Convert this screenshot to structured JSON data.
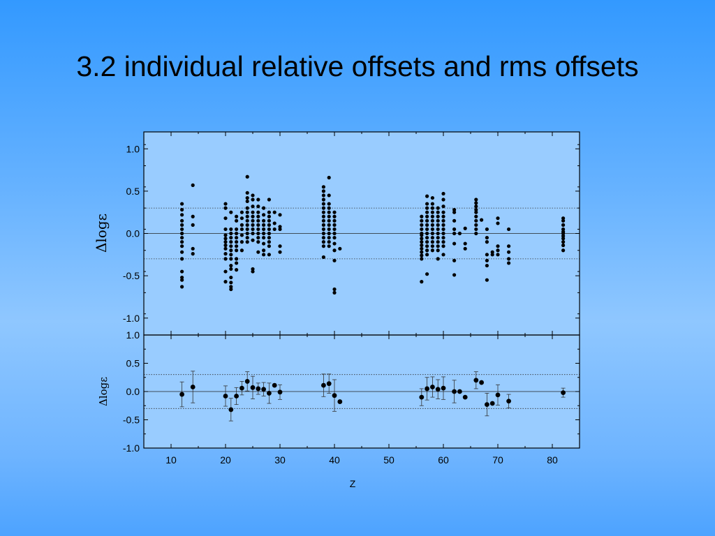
{
  "slide": {
    "title": "3.2 individual relative offsets and rms offsets"
  },
  "chart_data": [
    {
      "type": "scatter",
      "panel": "top",
      "title": "",
      "xlabel": "",
      "ylabel": "Δlogε",
      "xlim": [
        5,
        85
      ],
      "ylim": [
        -1.2,
        1.2
      ],
      "yticks": [
        1.0,
        0.5,
        0.0,
        -0.5,
        -1.0
      ],
      "ytick_labels": [
        "1.0",
        "0.5",
        "0.0",
        "-0.5",
        "-1.0"
      ],
      "reference_lines": {
        "solid": [
          0.0
        ],
        "dotted": [
          0.3,
          -0.3
        ]
      },
      "points": [
        [
          12,
          0.35
        ],
        [
          12,
          0.28
        ],
        [
          12,
          0.22
        ],
        [
          12,
          0.15
        ],
        [
          12,
          0.1
        ],
        [
          12,
          0.05
        ],
        [
          12,
          0.0
        ],
        [
          12,
          -0.05
        ],
        [
          12,
          -0.1
        ],
        [
          12,
          -0.15
        ],
        [
          12,
          -0.22
        ],
        [
          12,
          -0.3
        ],
        [
          12,
          -0.45
        ],
        [
          12,
          -0.52
        ],
        [
          12,
          -0.55
        ],
        [
          12,
          -0.63
        ],
        [
          14,
          0.57
        ],
        [
          14,
          0.2
        ],
        [
          14,
          0.1
        ],
        [
          14,
          -0.18
        ],
        [
          14,
          -0.24
        ],
        [
          20,
          0.35
        ],
        [
          20,
          0.3
        ],
        [
          20,
          0.18
        ],
        [
          20,
          0.05
        ],
        [
          20,
          -0.02
        ],
        [
          20,
          -0.06
        ],
        [
          20,
          -0.1
        ],
        [
          20,
          -0.14
        ],
        [
          20,
          -0.18
        ],
        [
          20,
          -0.24
        ],
        [
          20,
          -0.3
        ],
        [
          20,
          -0.45
        ],
        [
          20,
          -0.57
        ],
        [
          21,
          0.25
        ],
        [
          21,
          0.05
        ],
        [
          21,
          0.0
        ],
        [
          21,
          -0.05
        ],
        [
          21,
          -0.1
        ],
        [
          21,
          -0.15
        ],
        [
          21,
          -0.2
        ],
        [
          21,
          -0.25
        ],
        [
          21,
          -0.3
        ],
        [
          21,
          -0.38
        ],
        [
          21,
          -0.42
        ],
        [
          21,
          -0.52
        ],
        [
          21,
          -0.58
        ],
        [
          21,
          -0.63
        ],
        [
          21,
          -0.66
        ],
        [
          22,
          0.2
        ],
        [
          22,
          0.15
        ],
        [
          22,
          0.05
        ],
        [
          22,
          0.0
        ],
        [
          22,
          -0.05
        ],
        [
          22,
          -0.1
        ],
        [
          22,
          -0.15
        ],
        [
          22,
          -0.2
        ],
        [
          22,
          -0.3
        ],
        [
          22,
          -0.35
        ],
        [
          22,
          -0.43
        ],
        [
          23,
          0.25
        ],
        [
          23,
          0.18
        ],
        [
          23,
          0.1
        ],
        [
          23,
          0.05
        ],
        [
          23,
          -0.02
        ],
        [
          23,
          -0.1
        ],
        [
          23,
          -0.2
        ],
        [
          24,
          0.67
        ],
        [
          24,
          0.48
        ],
        [
          24,
          0.42
        ],
        [
          24,
          0.38
        ],
        [
          24,
          0.3
        ],
        [
          24,
          0.25
        ],
        [
          24,
          0.2
        ],
        [
          24,
          0.15
        ],
        [
          24,
          0.1
        ],
        [
          24,
          0.05
        ],
        [
          24,
          0.0
        ],
        [
          24,
          -0.05
        ],
        [
          24,
          -0.1
        ],
        [
          25,
          0.45
        ],
        [
          25,
          0.4
        ],
        [
          25,
          0.32
        ],
        [
          25,
          0.25
        ],
        [
          25,
          0.2
        ],
        [
          25,
          0.15
        ],
        [
          25,
          0.1
        ],
        [
          25,
          0.05
        ],
        [
          25,
          0.0
        ],
        [
          25,
          -0.08
        ],
        [
          25,
          -0.42
        ],
        [
          25,
          -0.45
        ],
        [
          26,
          0.4
        ],
        [
          26,
          0.32
        ],
        [
          26,
          0.25
        ],
        [
          26,
          0.2
        ],
        [
          26,
          0.15
        ],
        [
          26,
          0.1
        ],
        [
          26,
          0.05
        ],
        [
          26,
          0.0
        ],
        [
          26,
          -0.05
        ],
        [
          26,
          -0.1
        ],
        [
          26,
          -0.22
        ],
        [
          27,
          0.3
        ],
        [
          27,
          0.22
        ],
        [
          27,
          0.15
        ],
        [
          27,
          0.1
        ],
        [
          27,
          0.05
        ],
        [
          27,
          0.0
        ],
        [
          27,
          -0.05
        ],
        [
          27,
          -0.12
        ],
        [
          27,
          -0.2
        ],
        [
          27,
          -0.25
        ],
        [
          28,
          0.4
        ],
        [
          28,
          0.25
        ],
        [
          28,
          0.2
        ],
        [
          28,
          0.15
        ],
        [
          28,
          0.1
        ],
        [
          28,
          0.05
        ],
        [
          28,
          0.0
        ],
        [
          28,
          -0.05
        ],
        [
          28,
          -0.1
        ],
        [
          28,
          -0.15
        ],
        [
          28,
          -0.25
        ],
        [
          29,
          0.25
        ],
        [
          29,
          0.12
        ],
        [
          29,
          0.05
        ],
        [
          30,
          0.22
        ],
        [
          30,
          0.08
        ],
        [
          30,
          0.05
        ],
        [
          30,
          -0.15
        ],
        [
          30,
          -0.22
        ],
        [
          38,
          0.55
        ],
        [
          38,
          0.5
        ],
        [
          38,
          0.45
        ],
        [
          38,
          0.4
        ],
        [
          38,
          0.35
        ],
        [
          38,
          0.3
        ],
        [
          38,
          0.25
        ],
        [
          38,
          0.2
        ],
        [
          38,
          0.15
        ],
        [
          38,
          0.1
        ],
        [
          38,
          0.05
        ],
        [
          38,
          0.0
        ],
        [
          38,
          -0.05
        ],
        [
          38,
          -0.1
        ],
        [
          38,
          -0.15
        ],
        [
          38,
          -0.28
        ],
        [
          39,
          0.66
        ],
        [
          39,
          0.45
        ],
        [
          39,
          0.35
        ],
        [
          39,
          0.3
        ],
        [
          39,
          0.25
        ],
        [
          39,
          0.2
        ],
        [
          39,
          0.15
        ],
        [
          39,
          0.1
        ],
        [
          39,
          0.05
        ],
        [
          39,
          0.0
        ],
        [
          39,
          -0.05
        ],
        [
          39,
          -0.1
        ],
        [
          39,
          -0.15
        ],
        [
          40,
          0.25
        ],
        [
          40,
          0.2
        ],
        [
          40,
          0.15
        ],
        [
          40,
          0.1
        ],
        [
          40,
          0.05
        ],
        [
          40,
          0.0
        ],
        [
          40,
          -0.05
        ],
        [
          40,
          -0.12
        ],
        [
          40,
          -0.2
        ],
        [
          40,
          -0.32
        ],
        [
          40,
          -0.66
        ],
        [
          40,
          -0.7
        ],
        [
          41,
          -0.18
        ],
        [
          56,
          0.2
        ],
        [
          56,
          0.15
        ],
        [
          56,
          0.1
        ],
        [
          56,
          0.05
        ],
        [
          56,
          0.0
        ],
        [
          56,
          -0.02
        ],
        [
          56,
          -0.06
        ],
        [
          56,
          -0.1
        ],
        [
          56,
          -0.14
        ],
        [
          56,
          -0.18
        ],
        [
          56,
          -0.22
        ],
        [
          56,
          -0.26
        ],
        [
          56,
          -0.3
        ],
        [
          56,
          -0.57
        ],
        [
          57,
          0.44
        ],
        [
          57,
          0.35
        ],
        [
          57,
          0.3
        ],
        [
          57,
          0.25
        ],
        [
          57,
          0.2
        ],
        [
          57,
          0.15
        ],
        [
          57,
          0.1
        ],
        [
          57,
          0.05
        ],
        [
          57,
          0.0
        ],
        [
          57,
          -0.05
        ],
        [
          57,
          -0.1
        ],
        [
          57,
          -0.15
        ],
        [
          57,
          -0.2
        ],
        [
          57,
          -0.25
        ],
        [
          57,
          -0.48
        ],
        [
          58,
          0.42
        ],
        [
          58,
          0.35
        ],
        [
          58,
          0.3
        ],
        [
          58,
          0.25
        ],
        [
          58,
          0.2
        ],
        [
          58,
          0.15
        ],
        [
          58,
          0.1
        ],
        [
          58,
          0.05
        ],
        [
          58,
          0.0
        ],
        [
          58,
          -0.05
        ],
        [
          58,
          -0.1
        ],
        [
          58,
          -0.15
        ],
        [
          58,
          -0.2
        ],
        [
          59,
          0.3
        ],
        [
          59,
          0.25
        ],
        [
          59,
          0.2
        ],
        [
          59,
          0.15
        ],
        [
          59,
          0.1
        ],
        [
          59,
          0.05
        ],
        [
          59,
          0.0
        ],
        [
          59,
          -0.05
        ],
        [
          59,
          -0.1
        ],
        [
          59,
          -0.15
        ],
        [
          59,
          -0.2
        ],
        [
          59,
          -0.3
        ],
        [
          60,
          0.47
        ],
        [
          60,
          0.4
        ],
        [
          60,
          0.32
        ],
        [
          60,
          0.25
        ],
        [
          60,
          0.2
        ],
        [
          60,
          0.15
        ],
        [
          60,
          0.1
        ],
        [
          60,
          0.05
        ],
        [
          60,
          0.0
        ],
        [
          60,
          -0.05
        ],
        [
          60,
          -0.1
        ],
        [
          60,
          -0.15
        ],
        [
          60,
          -0.25
        ],
        [
          62,
          0.28
        ],
        [
          62,
          0.25
        ],
        [
          62,
          0.15
        ],
        [
          62,
          0.05
        ],
        [
          62,
          0.0
        ],
        [
          62,
          -0.12
        ],
        [
          62,
          -0.32
        ],
        [
          62,
          -0.49
        ],
        [
          63,
          0.0
        ],
        [
          64,
          0.06
        ],
        [
          64,
          -0.12
        ],
        [
          64,
          -0.18
        ],
        [
          66,
          0.4
        ],
        [
          66,
          0.36
        ],
        [
          66,
          0.32
        ],
        [
          66,
          0.28
        ],
        [
          66,
          0.25
        ],
        [
          66,
          0.2
        ],
        [
          66,
          0.15
        ],
        [
          66,
          0.1
        ],
        [
          66,
          0.05
        ],
        [
          66,
          0.0
        ],
        [
          67,
          0.16
        ],
        [
          68,
          0.05
        ],
        [
          68,
          -0.05
        ],
        [
          68,
          -0.1
        ],
        [
          68,
          -0.25
        ],
        [
          68,
          -0.32
        ],
        [
          68,
          -0.38
        ],
        [
          68,
          -0.55
        ],
        [
          69,
          -0.22
        ],
        [
          69,
          -0.25
        ],
        [
          70,
          0.18
        ],
        [
          70,
          0.12
        ],
        [
          70,
          -0.15
        ],
        [
          70,
          -0.2
        ],
        [
          70,
          -0.25
        ],
        [
          72,
          0.05
        ],
        [
          72,
          -0.15
        ],
        [
          72,
          -0.22
        ],
        [
          72,
          -0.3
        ],
        [
          72,
          -0.35
        ],
        [
          82,
          0.18
        ],
        [
          82,
          0.15
        ],
        [
          82,
          0.1
        ],
        [
          82,
          0.05
        ],
        [
          82,
          0.02
        ],
        [
          82,
          0.0
        ],
        [
          82,
          -0.03
        ],
        [
          82,
          -0.06
        ],
        [
          82,
          -0.1
        ],
        [
          82,
          -0.14
        ],
        [
          82,
          -0.2
        ]
      ]
    },
    {
      "type": "scatter",
      "panel": "bottom",
      "title": "",
      "xlabel": "Z",
      "ylabel": "Δlogε",
      "xlim": [
        5,
        85
      ],
      "ylim": [
        -1.0,
        1.0
      ],
      "xticks": [
        10,
        20,
        30,
        40,
        50,
        60,
        70,
        80
      ],
      "xtick_labels": [
        "10",
        "20",
        "30",
        "40",
        "50",
        "60",
        "70",
        "80"
      ],
      "yticks": [
        1.0,
        0.5,
        0.0,
        -0.5,
        -1.0
      ],
      "ytick_labels": [
        "1.0",
        "0.5",
        "0.0",
        "-0.5",
        "-1.0"
      ],
      "reference_lines": {
        "solid": [
          0.0
        ],
        "dotted": [
          0.3,
          -0.3
        ]
      },
      "points_with_error": [
        {
          "x": 12,
          "y": -0.05,
          "err": 0.22
        },
        {
          "x": 14,
          "y": 0.08,
          "err": 0.28
        },
        {
          "x": 20,
          "y": -0.08,
          "err": 0.18
        },
        {
          "x": 21,
          "y": -0.32,
          "err": 0.2
        },
        {
          "x": 22,
          "y": -0.08,
          "err": 0.15
        },
        {
          "x": 23,
          "y": 0.06,
          "err": 0.12
        },
        {
          "x": 24,
          "y": 0.18,
          "err": 0.17
        },
        {
          "x": 25,
          "y": 0.07,
          "err": 0.2
        },
        {
          "x": 26,
          "y": 0.05,
          "err": 0.1
        },
        {
          "x": 27,
          "y": 0.04,
          "err": 0.12
        },
        {
          "x": 28,
          "y": -0.03,
          "err": 0.18
        },
        {
          "x": 29,
          "y": 0.11,
          "err": 0.0
        },
        {
          "x": 30,
          "y": -0.01,
          "err": 0.13
        },
        {
          "x": 38,
          "y": 0.11,
          "err": 0.2
        },
        {
          "x": 39,
          "y": 0.14,
          "err": 0.17
        },
        {
          "x": 40,
          "y": -0.07,
          "err": 0.28
        },
        {
          "x": 41,
          "y": -0.18,
          "err": 0.0
        },
        {
          "x": 56,
          "y": -0.1,
          "err": 0.15
        },
        {
          "x": 57,
          "y": 0.05,
          "err": 0.2
        },
        {
          "x": 58,
          "y": 0.08,
          "err": 0.18
        },
        {
          "x": 59,
          "y": 0.04,
          "err": 0.17
        },
        {
          "x": 60,
          "y": 0.06,
          "err": 0.2
        },
        {
          "x": 62,
          "y": 0.0,
          "err": 0.2
        },
        {
          "x": 63,
          "y": 0.0,
          "err": 0.0
        },
        {
          "x": 64,
          "y": -0.1,
          "err": 0.0
        },
        {
          "x": 66,
          "y": 0.2,
          "err": 0.15
        },
        {
          "x": 67,
          "y": 0.16,
          "err": 0.0
        },
        {
          "x": 68,
          "y": -0.23,
          "err": 0.2
        },
        {
          "x": 69,
          "y": -0.21,
          "err": 0.0
        },
        {
          "x": 70,
          "y": -0.06,
          "err": 0.18
        },
        {
          "x": 72,
          "y": -0.17,
          "err": 0.12
        },
        {
          "x": 82,
          "y": -0.02,
          "err": 0.08
        }
      ]
    }
  ]
}
